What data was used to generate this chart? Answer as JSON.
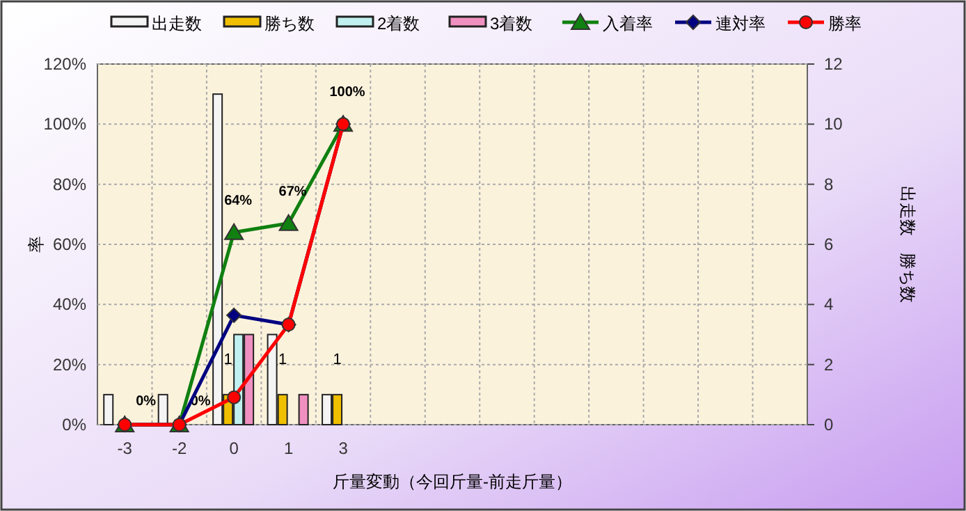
{
  "chart_data": {
    "type": "bar",
    "xlabel": "斤量変動（今回斤量-前走斤量）",
    "ylabel": "率",
    "y2label": "出走数　勝ち数",
    "categories": [
      "-3",
      "-2",
      "0",
      "1",
      "3",
      null,
      null,
      null,
      null,
      null,
      null,
      null,
      null
    ],
    "ylim": [
      0,
      120
    ],
    "yticks": [
      {
        "value": 0,
        "label": "0%"
      },
      {
        "value": 20,
        "label": "20%"
      },
      {
        "value": 40,
        "label": "40%"
      },
      {
        "value": 60,
        "label": "60%"
      },
      {
        "value": 80,
        "label": "80%"
      },
      {
        "value": 100,
        "label": "100%"
      },
      {
        "value": 120,
        "label": "120%"
      }
    ],
    "y2lim": [
      0,
      12
    ],
    "y2ticks": [
      0,
      2,
      4,
      6,
      8,
      10,
      12
    ],
    "grid": true,
    "legend": "top",
    "series": [
      {
        "name": "出走数",
        "axis": "y2",
        "color": "#f4f4f4",
        "values": [
          1,
          1,
          11,
          3,
          1,
          null,
          null,
          null,
          null,
          null,
          null,
          null,
          null
        ]
      },
      {
        "name": "勝ち数",
        "axis": "y2",
        "color": "#f0c000",
        "values": [
          0,
          0,
          1,
          1,
          1,
          null,
          null,
          null,
          null,
          null,
          null,
          null,
          null
        ],
        "value_labels": [
          null,
          null,
          "1",
          "1",
          "1",
          null,
          null,
          null,
          null,
          null,
          null,
          null,
          null
        ]
      },
      {
        "name": "2着数",
        "axis": "y2",
        "color": "#c0f0f0",
        "values": [
          0,
          0,
          3,
          0,
          0,
          null,
          null,
          null,
          null,
          null,
          null,
          null,
          null
        ]
      },
      {
        "name": "3着数",
        "axis": "y2",
        "color": "#f090c0",
        "values": [
          0,
          0,
          3,
          1,
          0,
          null,
          null,
          null,
          null,
          null,
          null,
          null,
          null
        ]
      },
      {
        "name": "入着率",
        "type": "line",
        "color": "#108010",
        "marker": "triangle",
        "values": [
          0,
          0,
          64,
          67,
          100,
          null,
          null,
          null,
          null,
          null,
          null,
          null,
          null
        ],
        "value_labels": [
          "0%",
          "0%",
          "64%",
          "67%",
          "100%",
          null,
          null,
          null,
          null,
          null,
          null,
          null,
          null
        ]
      },
      {
        "name": "連対率",
        "type": "line",
        "color": "#000080",
        "marker": "diamond",
        "values": [
          0,
          0,
          36.4,
          33.3,
          100,
          null,
          null,
          null,
          null,
          null,
          null,
          null,
          null
        ]
      },
      {
        "name": "勝率",
        "type": "line",
        "color": "#ff0000",
        "marker": "circle",
        "values": [
          0,
          0,
          9.1,
          33.3,
          100,
          null,
          null,
          null,
          null,
          null,
          null,
          null,
          null
        ]
      }
    ]
  }
}
